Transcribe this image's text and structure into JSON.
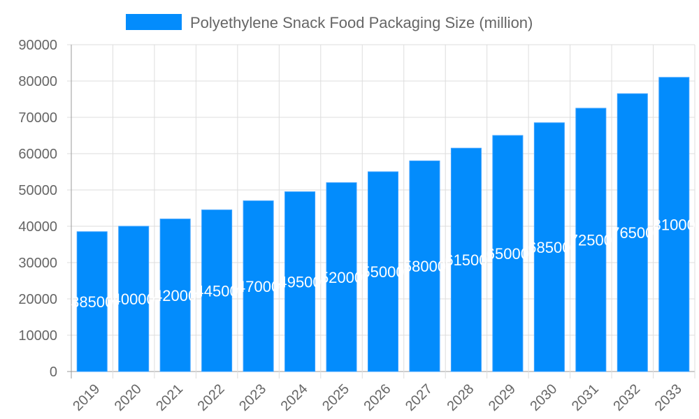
{
  "chart_data": {
    "type": "bar",
    "title": "",
    "xlabel": "",
    "ylabel": "",
    "categories": [
      "2019",
      "2020",
      "2021",
      "2022",
      "2023",
      "2024",
      "2025",
      "2026",
      "2027",
      "2028",
      "2029",
      "2030",
      "2031",
      "2032",
      "2033"
    ],
    "series": [
      {
        "name": "Polyethylene Snack Food Packaging Size (million)",
        "values": [
          38500,
          40000,
          42000,
          44500,
          47000,
          49500,
          52000,
          55000,
          58000,
          61500,
          65000,
          68500,
          72500,
          76500,
          81000
        ],
        "color": "#038cfc"
      }
    ],
    "ylim": [
      0,
      90000
    ],
    "yticks": [
      0,
      10000,
      20000,
      30000,
      40000,
      50000,
      60000,
      70000,
      80000,
      90000
    ],
    "grid": true,
    "legend": "top-center",
    "data_labels": true
  }
}
